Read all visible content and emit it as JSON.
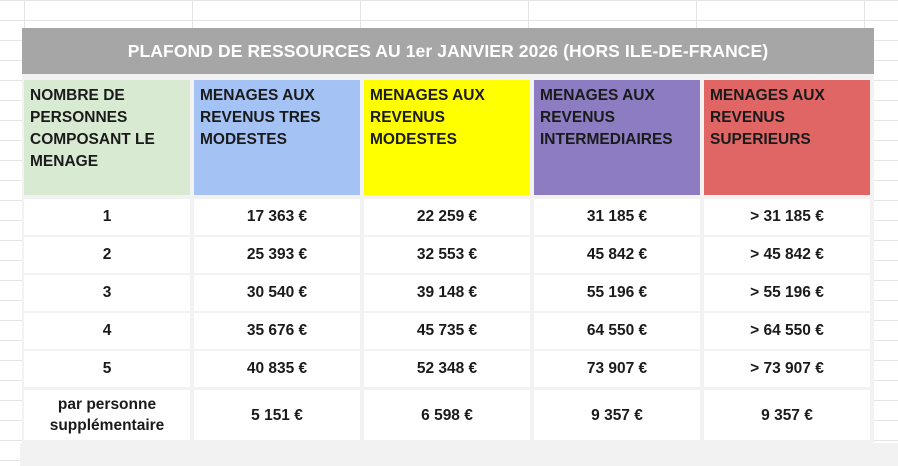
{
  "title": "PLAFOND DE RESSOURCES AU 1er JANVIER 2026 (HORS ILE-DE-FRANCE)",
  "headers": [
    [
      "NOMBRE DE",
      "PERSONNES",
      "COMPOSANT LE",
      "MENAGE"
    ],
    [
      "MENAGES AUX",
      "REVENUS TRES",
      "MODESTES"
    ],
    [
      "MENAGES AUX",
      "REVENUS",
      "MODESTES"
    ],
    [
      "MENAGES AUX",
      "REVENUS",
      "INTERMEDIAIRES"
    ],
    [
      "MENAGES AUX",
      "REVENUS",
      "SUPERIEURS"
    ]
  ],
  "header_colors": [
    "#d9ead3",
    "#a4c2f4",
    "#ffff00",
    "#8e7cc3",
    "#e06666"
  ],
  "title_color": "#a6a6a6",
  "rows": [
    [
      "1",
      "17 363 €",
      "22 259 €",
      "31 185 €",
      "> 31 185 €"
    ],
    [
      "2",
      "25 393 €",
      "32 553 €",
      "45 842 €",
      "> 45 842 €"
    ],
    [
      "3",
      "30 540 €",
      "39 148 €",
      "55 196 €",
      "> 55 196 €"
    ],
    [
      "4",
      "35 676 €",
      "45 735 €",
      "64 550 €",
      "> 64 550 €"
    ],
    [
      "5",
      "40 835 €",
      "52 348 €",
      "73 907 €",
      "> 73 907 €"
    ]
  ],
  "extra_row": {
    "label": [
      "par personne",
      "supplémentaire"
    ],
    "values": [
      "5 151 €",
      "6 598 €",
      "9 357 €",
      "9 357 €"
    ]
  }
}
